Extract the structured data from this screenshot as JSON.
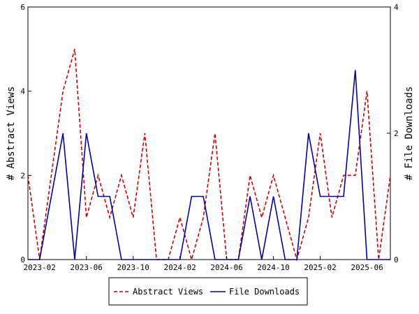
{
  "chart_data": {
    "type": "line",
    "x": [
      "2023-01",
      "2023-02",
      "2023-03",
      "2023-04",
      "2023-05",
      "2023-06",
      "2023-07",
      "2023-08",
      "2023-09",
      "2023-10",
      "2023-11",
      "2023-12",
      "2024-01",
      "2024-02",
      "2024-03",
      "2024-04",
      "2024-05",
      "2024-06",
      "2024-07",
      "2024-08",
      "2024-09",
      "2024-10",
      "2024-11",
      "2024-12",
      "2025-01",
      "2025-02",
      "2025-03",
      "2025-04",
      "2025-05",
      "2025-06",
      "2025-07",
      "2025-08"
    ],
    "x_tick_labels": [
      "2023-02",
      "2023-06",
      "2023-10",
      "2024-02",
      "2024-06",
      "2024-10",
      "2025-02",
      "2025-06"
    ],
    "series": [
      {
        "name": "Abstract Views",
        "axis": "left",
        "color": "#cc0000",
        "style": "dashed",
        "values": [
          2,
          0,
          2,
          4,
          5,
          1,
          2,
          1,
          2,
          1,
          3,
          0,
          0,
          1,
          0,
          1,
          3,
          0,
          0,
          2,
          1,
          2,
          1,
          0,
          1,
          3,
          1,
          2,
          2,
          4,
          0,
          2
        ]
      },
      {
        "name": "File Downloads",
        "axis": "right",
        "color": "#0000aa",
        "style": "solid",
        "values": [
          0,
          0,
          1,
          2,
          0,
          2,
          1,
          1,
          0,
          0,
          0,
          0,
          0,
          0,
          1,
          1,
          0,
          0,
          0,
          1,
          0,
          1,
          0,
          0,
          2,
          1,
          1,
          1,
          3,
          0,
          0,
          0
        ]
      }
    ],
    "ylabel_left": "# Abstract Views",
    "ylabel_right": "# File Downloads",
    "ylim_left": [
      0,
      6
    ],
    "ylim_right": [
      0,
      4
    ],
    "yticks_left": [
      0,
      2,
      4,
      6
    ],
    "yticks_right": [
      0,
      2,
      4
    ],
    "legend_position": "bottom",
    "grid": false
  }
}
